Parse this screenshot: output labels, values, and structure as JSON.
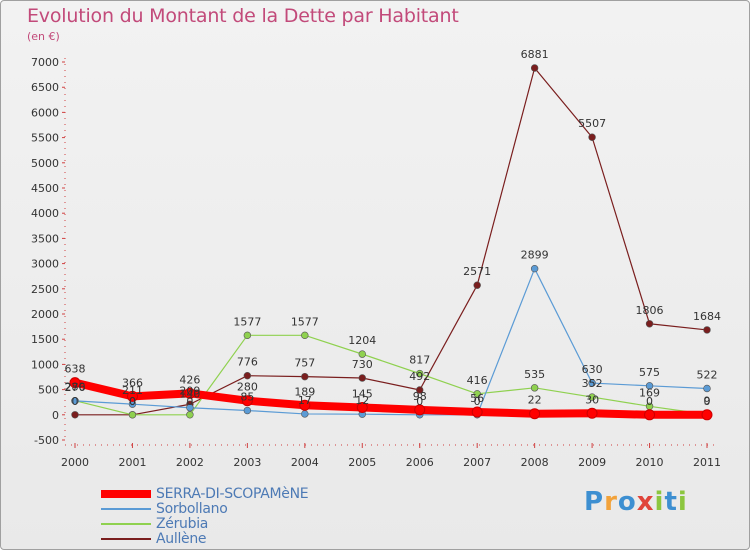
{
  "header": {
    "title": "Evolution du Montant de la Dette par Habitant",
    "subtitle": "(en €)"
  },
  "logo": {
    "text": "Proxiti",
    "letters": [
      {
        "ch": "P",
        "color": "#3d8fd1"
      },
      {
        "ch": "r",
        "color": "#f2a23a"
      },
      {
        "ch": "o",
        "color": "#3d8fd1"
      },
      {
        "ch": "x",
        "color": "#e0443a"
      },
      {
        "ch": "i",
        "color": "#8cc63f"
      },
      {
        "ch": "t",
        "color": "#3d8fd1"
      },
      {
        "ch": "i",
        "color": "#8cc63f"
      }
    ]
  },
  "chart_data": {
    "type": "line",
    "x": [
      "2000",
      "2001",
      "2002",
      "2003",
      "2004",
      "2005",
      "2006",
      "2007",
      "2008",
      "2009",
      "2010",
      "2011"
    ],
    "ylim": [
      -500,
      7000
    ],
    "yticks": [
      -500,
      0,
      500,
      1000,
      1500,
      2000,
      2500,
      3000,
      3500,
      4000,
      4500,
      5000,
      5500,
      6000,
      6500,
      7000
    ],
    "grid": false,
    "legend_position": "bottom-left",
    "series": [
      {
        "name": "SERRA-DI-SCOPAMèNE",
        "color": "#ff0000",
        "values": [
          638,
          366,
          426,
          280,
          189,
          145,
          98,
          56,
          22,
          30,
          0,
          0
        ],
        "labels": [
          "638",
          "366",
          "426",
          "280",
          "189",
          "145",
          "98",
          "56",
          "22",
          "30",
          "0",
          "0"
        ]
      },
      {
        "name": "Sorbollano",
        "color": "#5b9bd5",
        "values": [
          276,
          211,
          140,
          85,
          17,
          12,
          0,
          0,
          2899,
          630,
          575,
          522
        ],
        "labels": [
          "276",
          "211",
          "140",
          "85",
          "17",
          "12",
          "0",
          "0",
          "2899",
          "630",
          "575",
          "522"
        ]
      },
      {
        "name": "Zérubia",
        "color": "#8fd14f",
        "values": [
          280,
          0,
          0,
          1577,
          1577,
          1204,
          817,
          416,
          535,
          352,
          169,
          9
        ],
        "labels": [
          "280",
          "0",
          "0",
          "1577",
          "1577",
          "1204",
          "817",
          "416",
          "535",
          "352",
          "169",
          "9"
        ]
      },
      {
        "name": "Aullène",
        "color": "#7a1e1e",
        "values": [
          0,
          0,
          209,
          776,
          757,
          730,
          492,
          2571,
          6881,
          5507,
          1806,
          1684
        ],
        "labels": [
          "0",
          "0",
          "209",
          "776",
          "757",
          "730",
          "492",
          "2571",
          "6881",
          "5507",
          "1806",
          "1684"
        ]
      }
    ]
  }
}
